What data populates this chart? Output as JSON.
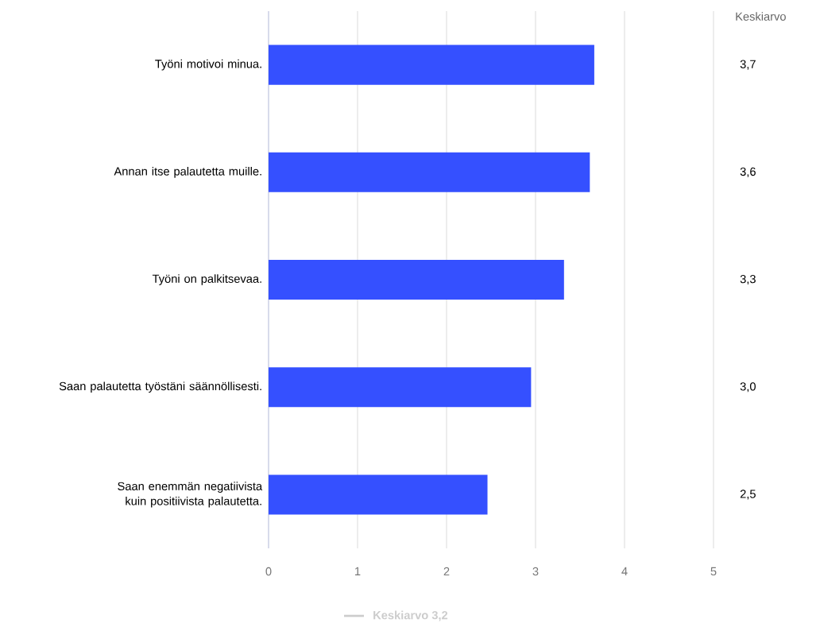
{
  "chart_data": {
    "type": "bar",
    "orientation": "horizontal",
    "categories": [
      "Työni motivoi minua.",
      "Annan itse palautetta muille.",
      "Työni on palkitsevaa.",
      "Saan palautetta työstäni säännöllisesti.",
      "Saan enemmän negatiivista kuin positiivista palautetta."
    ],
    "values": [
      3.66,
      3.61,
      3.32,
      2.95,
      2.46
    ],
    "value_labels": [
      "3,7",
      "3,6",
      "3,3",
      "3,0",
      "2,5"
    ],
    "color": "#3550ff",
    "xlim": [
      0,
      5
    ],
    "xticks": [
      0,
      1,
      2,
      3,
      4,
      5
    ],
    "grid": "x",
    "annotations": [
      "Keskiarvo",
      "Keskiarvo 3,2"
    ]
  }
}
